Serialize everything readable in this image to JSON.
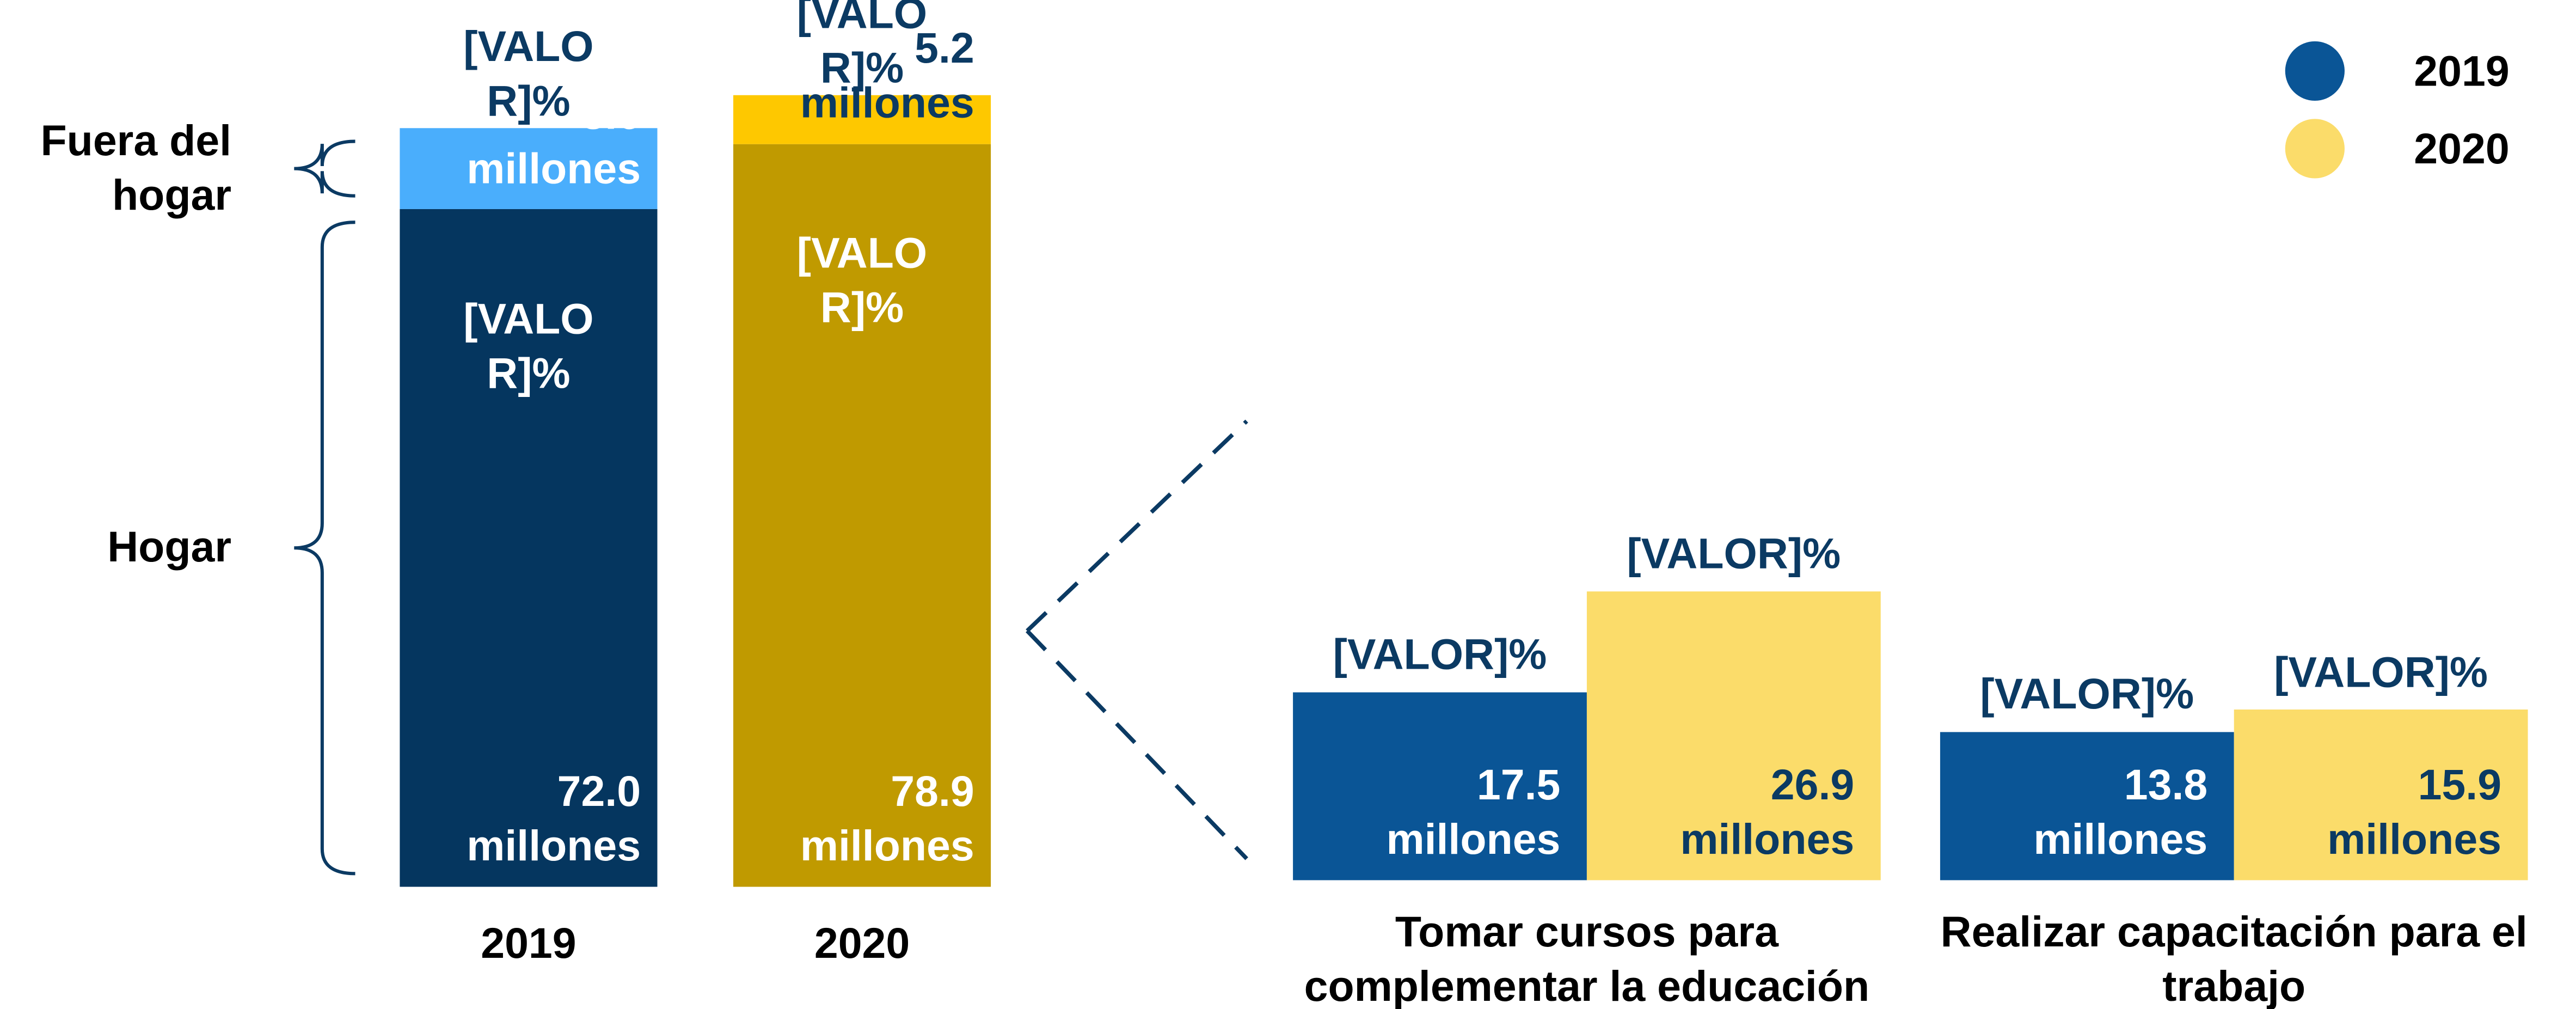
{
  "chart_data": [
    {
      "type": "stacked_bar",
      "categories": [
        "2019",
        "2020"
      ],
      "series": [
        {
          "name": "Hogar",
          "colors": [
            "#05365f",
            "#c09a00"
          ],
          "values": [
            72.0,
            78.9
          ],
          "value_labels": [
            "72.0 millones",
            "78.9 millones"
          ],
          "pct_labels": [
            "[VALOR]%",
            "[VALOR]%"
          ]
        },
        {
          "name": "Fuera del hogar",
          "colors": [
            "#4aaefc",
            "#fec800"
          ],
          "values": [
            8.6,
            5.2
          ],
          "value_labels": [
            "8.6 millones",
            "5.2 millones"
          ],
          "pct_labels": [
            "[VALOR]%",
            "[VALOR]%"
          ]
        }
      ]
    },
    {
      "type": "bar",
      "categories": [
        "Tomar cursos para complementar la educación",
        "Realizar capacitación para el trabajo"
      ],
      "series": [
        {
          "name": "2019",
          "color": "#0a5596",
          "values": [
            17.5,
            13.8
          ],
          "value_labels": [
            "17.5 millones",
            "13.8 millones"
          ],
          "pct_labels": [
            "[VALOR]%",
            "[VALOR]%"
          ]
        },
        {
          "name": "2020",
          "color": "#fbdc6a",
          "values": [
            26.9,
            15.9
          ],
          "value_labels": [
            "26.9 millones",
            "15.9 millones"
          ],
          "pct_labels": [
            "[VALOR]%",
            "[VALOR]%"
          ]
        }
      ],
      "legend": "upper right"
    }
  ]
}
